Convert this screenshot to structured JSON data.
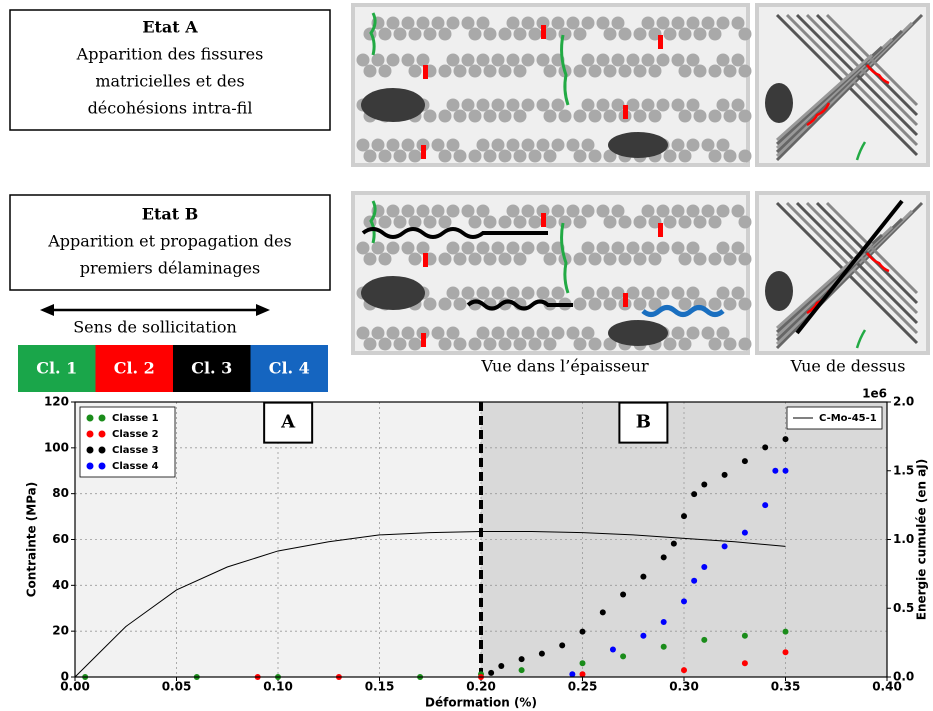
{
  "panels": {
    "etat_a": {
      "title": "Etat A",
      "lines": [
        "Apparition des fissures",
        "matricielles et des",
        "décohésions intra-fil"
      ]
    },
    "etat_b": {
      "title": "Etat B",
      "lines": [
        "Apparition et propagation des",
        "premiers délaminages"
      ]
    },
    "direction": "Sens de sollicitation",
    "classes": [
      {
        "label": "Cl. 1",
        "color": "#1aa64a"
      },
      {
        "label": "Cl. 2",
        "color": "#ff0000"
      },
      {
        "label": "Cl. 3",
        "color": "#000000"
      },
      {
        "label": "Cl. 4",
        "color": "#1565c0"
      }
    ],
    "view_side": "Vue dans l’épaisseur",
    "view_top": "Vue de dessus"
  },
  "chart_data": {
    "type": "scatter",
    "xlabel": "Déformation (%)",
    "ylabel": "Contrainte (MPa)",
    "y2label": "Energie cumulée (en aJ)",
    "y2offset": "1e6",
    "xlim": [
      0,
      0.4
    ],
    "xticks": [
      {
        "value": 0,
        "label": "0.00"
      },
      0.05,
      {
        "value": 0.1,
        "label": "0.10"
      },
      0.15,
      {
        "value": 0.2,
        "label": "0.20"
      },
      0.25,
      {
        "value": 0.3,
        "label": "0.30"
      },
      0.35,
      {
        "value": 0.4,
        "label": "0.40"
      }
    ],
    "ylim": [
      0,
      120
    ],
    "yticks": [
      0,
      20,
      40,
      60,
      80,
      100,
      120
    ],
    "y2lim": [
      0,
      2.0
    ],
    "y2ticks": [
      {
        "value": 0,
        "label": "0.0"
      },
      0.5,
      {
        "value": 1,
        "label": "1.0"
      },
      1.5,
      {
        "value": 2,
        "label": "2.0"
      }
    ],
    "grid": true,
    "vline": 0.2,
    "annotations": [
      "A",
      "B"
    ],
    "legend": "upper left",
    "legend2": "upper right",
    "series": [
      {
        "name": "Classe 1",
        "type": "scatter",
        "axis": "y2",
        "color": "#1a8c1a",
        "x": [
          0.005,
          0.06,
          0.1,
          0.17,
          0.2,
          0.22,
          0.25,
          0.27,
          0.29,
          0.31,
          0.33,
          0.35
        ],
        "values": [
          0,
          0,
          0,
          0,
          0.02,
          0.05,
          0.1,
          0.15,
          0.22,
          0.27,
          0.3,
          0.33
        ]
      },
      {
        "name": "Classe 2",
        "type": "scatter",
        "axis": "y2",
        "color": "#ff0000",
        "x": [
          0.09,
          0.13,
          0.2,
          0.25,
          0.3,
          0.33,
          0.35
        ],
        "values": [
          0,
          0,
          0,
          0.02,
          0.05,
          0.1,
          0.18
        ]
      },
      {
        "name": "Classe 3",
        "type": "scatter",
        "axis": "y2",
        "color": "#000000",
        "x": [
          0.205,
          0.21,
          0.22,
          0.23,
          0.24,
          0.25,
          0.26,
          0.27,
          0.28,
          0.29,
          0.295,
          0.3,
          0.305,
          0.31,
          0.32,
          0.33,
          0.34,
          0.35
        ],
        "values": [
          0.03,
          0.08,
          0.13,
          0.17,
          0.23,
          0.33,
          0.47,
          0.6,
          0.73,
          0.87,
          0.97,
          1.17,
          1.33,
          1.4,
          1.47,
          1.57,
          1.67,
          1.73
        ]
      },
      {
        "name": "Classe 4",
        "type": "scatter",
        "axis": "y2",
        "color": "#0000ff",
        "x": [
          0.245,
          0.265,
          0.28,
          0.29,
          0.3,
          0.305,
          0.31,
          0.32,
          0.33,
          0.34,
          0.345,
          0.35
        ],
        "values": [
          0.02,
          0.2,
          0.3,
          0.4,
          0.55,
          0.7,
          0.8,
          0.95,
          1.05,
          1.25,
          1.5,
          1.5
        ]
      },
      {
        "name": "C-Mo-45-1",
        "type": "line",
        "axis": "y",
        "color": "#000000",
        "x": [
          0,
          0.025,
          0.05,
          0.075,
          0.1,
          0.125,
          0.15,
          0.175,
          0.2,
          0.225,
          0.25,
          0.275,
          0.3,
          0.325,
          0.35
        ],
        "values": [
          0,
          22,
          38,
          48,
          55,
          59,
          62,
          63,
          63.5,
          63.5,
          63,
          62,
          60.5,
          59,
          57
        ]
      }
    ]
  }
}
